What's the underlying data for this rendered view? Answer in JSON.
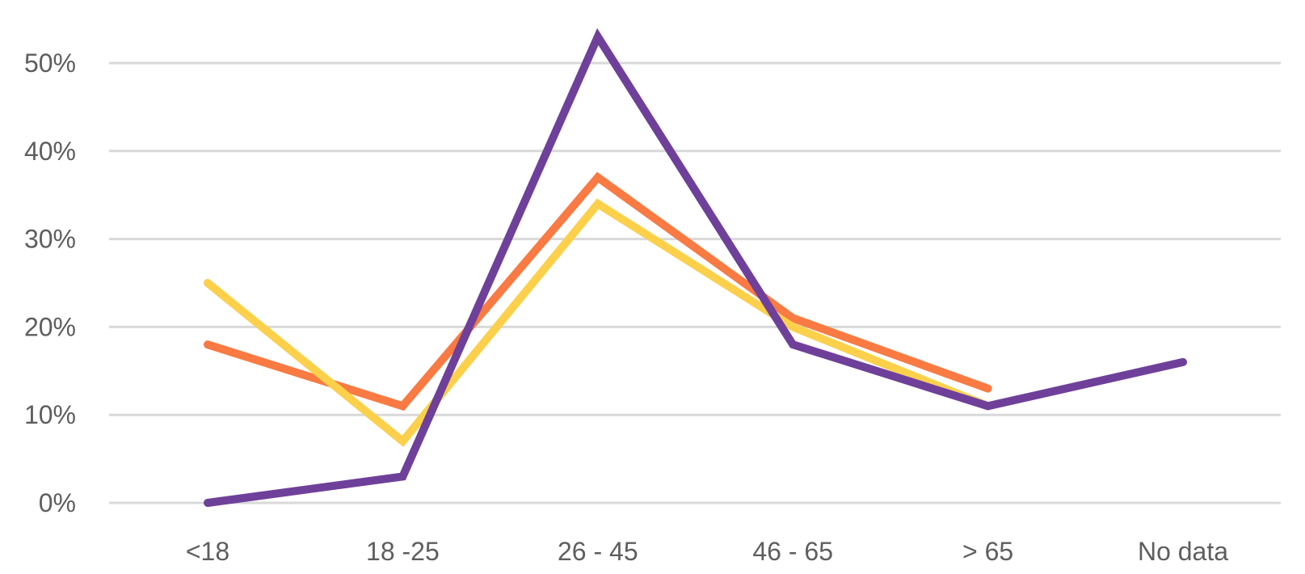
{
  "chart_data": {
    "type": "line",
    "title": "",
    "xlabel": "",
    "ylabel": "",
    "categories": [
      "<18",
      "18 -25",
      "26 - 45",
      "46 - 65",
      "> 65",
      "No data"
    ],
    "y_ticks": [
      0,
      10,
      20,
      30,
      40,
      50
    ],
    "y_tick_suffix": "%",
    "ylim": [
      0,
      55
    ],
    "grid": true,
    "legend": "none",
    "series": [
      {
        "color": "#f97a42",
        "values": [
          18,
          11,
          37,
          21,
          13,
          null
        ]
      },
      {
        "color": "#fcd04a",
        "values": [
          25,
          7,
          34,
          20,
          11,
          null
        ]
      },
      {
        "color": "#6f409a",
        "values": [
          0,
          3,
          53,
          18,
          11,
          16
        ]
      }
    ]
  }
}
